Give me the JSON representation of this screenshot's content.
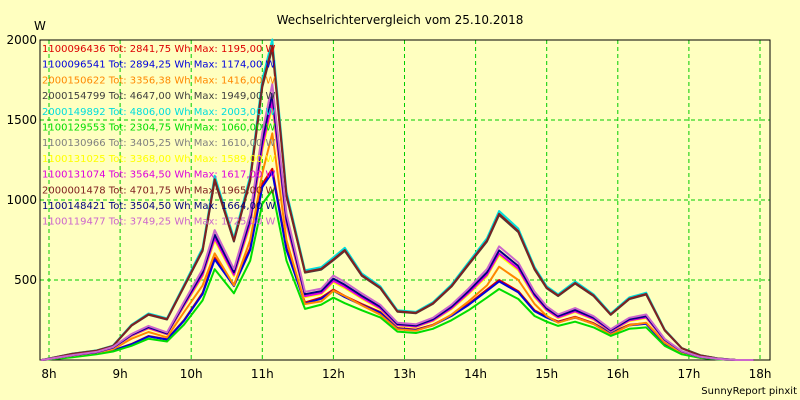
{
  "chart_data": {
    "type": "line",
    "title": "Wechselrichtervergleich vom 25.10.2018",
    "ylabel": "W",
    "xlabel": "",
    "ylim": [
      0,
      2000
    ],
    "xlim": [
      8,
      18
    ],
    "y_ticks": [
      500,
      1000,
      1500,
      2000
    ],
    "x_ticks": [
      "8h",
      "9h",
      "10h",
      "11h",
      "12h",
      "13h",
      "14h",
      "15h",
      "16h",
      "17h",
      "18h"
    ],
    "grid": true,
    "legend_position": "top-left inside",
    "credit": "SunnyReport pinxit",
    "x": [
      7.9,
      8.33,
      8.67,
      8.9,
      9.16,
      9.4,
      9.66,
      9.9,
      10.16,
      10.33,
      10.6,
      10.83,
      11.0,
      11.14,
      11.34,
      11.6,
      11.83,
      12.0,
      12.16,
      12.4,
      12.66,
      12.9,
      13.16,
      13.4,
      13.66,
      13.9,
      14.16,
      14.33,
      14.6,
      14.83,
      15.0,
      15.16,
      15.4,
      15.66,
      15.9,
      16.16,
      16.4,
      16.66,
      16.9,
      17.16,
      17.4,
      17.66,
      17.9
    ],
    "series": [
      {
        "name": "1100096436 Tot: 2841,75 Wh Max: 1195,00 W",
        "color": "#dd0000",
        "peak": 1195,
        "profile": "A"
      },
      {
        "name": "1100096541 Tot: 2894,25 Wh Max: 1174,00 W",
        "color": "#0000dd",
        "peak": 1174,
        "profile": "A"
      },
      {
        "name": "2000150622 Tot: 3356,38 Wh Max: 1416,00 W",
        "color": "#ff8800",
        "peak": 1416,
        "profile": "B"
      },
      {
        "name": "2000154799 Tot: 4647,00 Wh Max: 1949,00 W",
        "color": "#404040",
        "peak": 1949,
        "profile": "C"
      },
      {
        "name": "2000149892 Tot: 4806,00 Wh Max: 2003,00 W",
        "color": "#00dddd",
        "peak": 2003,
        "profile": "C"
      },
      {
        "name": "1100129553 Tot: 2304,75 Wh Max: 1060,00 W",
        "color": "#00dd00",
        "peak": 1060,
        "profile": "A"
      },
      {
        "name": "1100130966 Tot: 3405,25 Wh Max: 1610,00 W",
        "color": "#808080",
        "peak": 1610,
        "profile": "B"
      },
      {
        "name": "1100131025 Tot: 3368,00 Wh Max: 1589,00 W",
        "color": "#ffff00",
        "peak": 1589,
        "profile": "B"
      },
      {
        "name": "1100131074 Tot: 3564,50 Wh Max: 1617,00 W",
        "color": "#dd00dd",
        "peak": 1617,
        "profile": "B"
      },
      {
        "name": "2000001478 Tot: 4701,75 Wh Max: 1965,00 W",
        "color": "#802020",
        "peak": 1965,
        "profile": "C"
      },
      {
        "name": "1100148421 Tot: 3504,50 Wh Max: 1664,00 W",
        "color": "#000080",
        "peak": 1664,
        "profile": "B"
      },
      {
        "name": "1100119477 Tot: 3749,25 Wh Max: 1725,00 W",
        "color": "#cc66cc",
        "peak": 1725,
        "profile": "B"
      }
    ],
    "profiles": {
      "A": [
        0,
        20,
        40,
        60,
        100,
        150,
        130,
        250,
        420,
        640,
        470,
        700,
        1100,
        1195,
        700,
        360,
        390,
        440,
        400,
        350,
        300,
        200,
        190,
        220,
        280,
        350,
        440,
        500,
        430,
        310,
        270,
        240,
        270,
        230,
        170,
        220,
        230,
        100,
        40,
        15,
        5,
        0,
        0
      ],
      "B": [
        0,
        30,
        50,
        80,
        160,
        210,
        170,
        360,
        560,
        800,
        560,
        900,
        1400,
        1700,
        900,
        420,
        440,
        520,
        480,
        410,
        340,
        230,
        220,
        260,
        340,
        440,
        560,
        700,
        600,
        420,
        330,
        280,
        320,
        270,
        190,
        260,
        280,
        130,
        55,
        20,
        8,
        0,
        0
      ],
      "C": [
        0,
        40,
        60,
        90,
        220,
        290,
        260,
        470,
        700,
        1150,
        760,
        1150,
        1750,
        2000,
        1050,
        560,
        580,
        640,
        700,
        540,
        460,
        310,
        300,
        360,
        470,
        610,
        760,
        930,
        820,
        580,
        460,
        410,
        490,
        410,
        290,
        390,
        420,
        190,
        75,
        30,
        10,
        0,
        0
      ]
    }
  }
}
